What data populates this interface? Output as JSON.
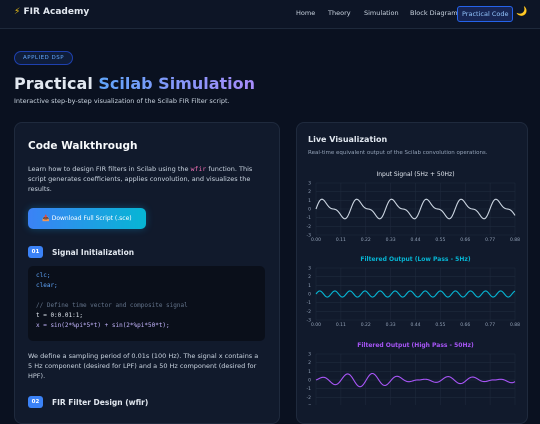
{
  "nav": {
    "brand": "FIR Academy",
    "items": [
      "Home",
      "Theory",
      "Simulation",
      "Block Diagram",
      "Practical Code"
    ],
    "active": 4
  },
  "hero": {
    "badge": "APPLIED DSP",
    "title_plain": "Practical",
    "title_accent": "Scilab Simulation",
    "subtitle": "Interactive step-by-step visualization of the Scilab FIR Filter script."
  },
  "walkthrough": {
    "title": "Code Walkthrough",
    "intro": [
      "Learn how to design FIR filters in Scilab using the ",
      "wfir",
      " function. This script generates coefficients, applies convolution, and visualizes the results."
    ],
    "button": "📥 Download Full Script (.sce)",
    "steps": [
      {
        "number": "01",
        "title": "Signal Initialization",
        "code": [
          "clc;",
          "clear;",
          "",
          "// Define time vector and composite signal",
          "t = 0:0.01:1;",
          "x = sin(2*%pi*5*t) + sin(2*%pi*50*t);"
        ],
        "text": "We define a sampling period of 0.01s (100 Hz). The signal x contains a 5 Hz component (desired for LPF) and a 50 Hz component (desired for HPF)."
      },
      {
        "number": "02",
        "title": "FIR Filter Design (wfir)"
      }
    ]
  },
  "visualization": {
    "title": "Live Visualization",
    "subtitle": "Real-time equivalent output of the Scilab convolution operations.",
    "charts": [
      {
        "title": "Input Signal (5Hz + 50Hz)",
        "color": "#cbd5e1"
      },
      {
        "title": "Filtered Output (Low Pass - 5Hz)",
        "color": "#06b6d4"
      },
      {
        "title": "Filtered Output (High Pass - 50Hz)",
        "color": "#a855f7"
      }
    ],
    "yticks": [
      3,
      2,
      1,
      0,
      -1,
      -2,
      -3
    ],
    "ylim": [
      -3,
      3
    ],
    "xlim": [
      0,
      0.88
    ],
    "xticks": [
      {
        "value": 0,
        "label": "0.00"
      },
      {
        "value": 0.11,
        "label": "0.11"
      },
      {
        "value": 0.22,
        "label": "0.22"
      },
      {
        "value": 0.33,
        "label": "0.33"
      },
      {
        "value": 0.44,
        "label": "0.44"
      },
      {
        "value": 0.55,
        "label": "0.55"
      },
      {
        "value": 0.66,
        "label": "0.66"
      },
      {
        "value": 0.77,
        "label": "0.77"
      },
      {
        "value": 0.88,
        "label": "0.88"
      }
    ]
  }
}
